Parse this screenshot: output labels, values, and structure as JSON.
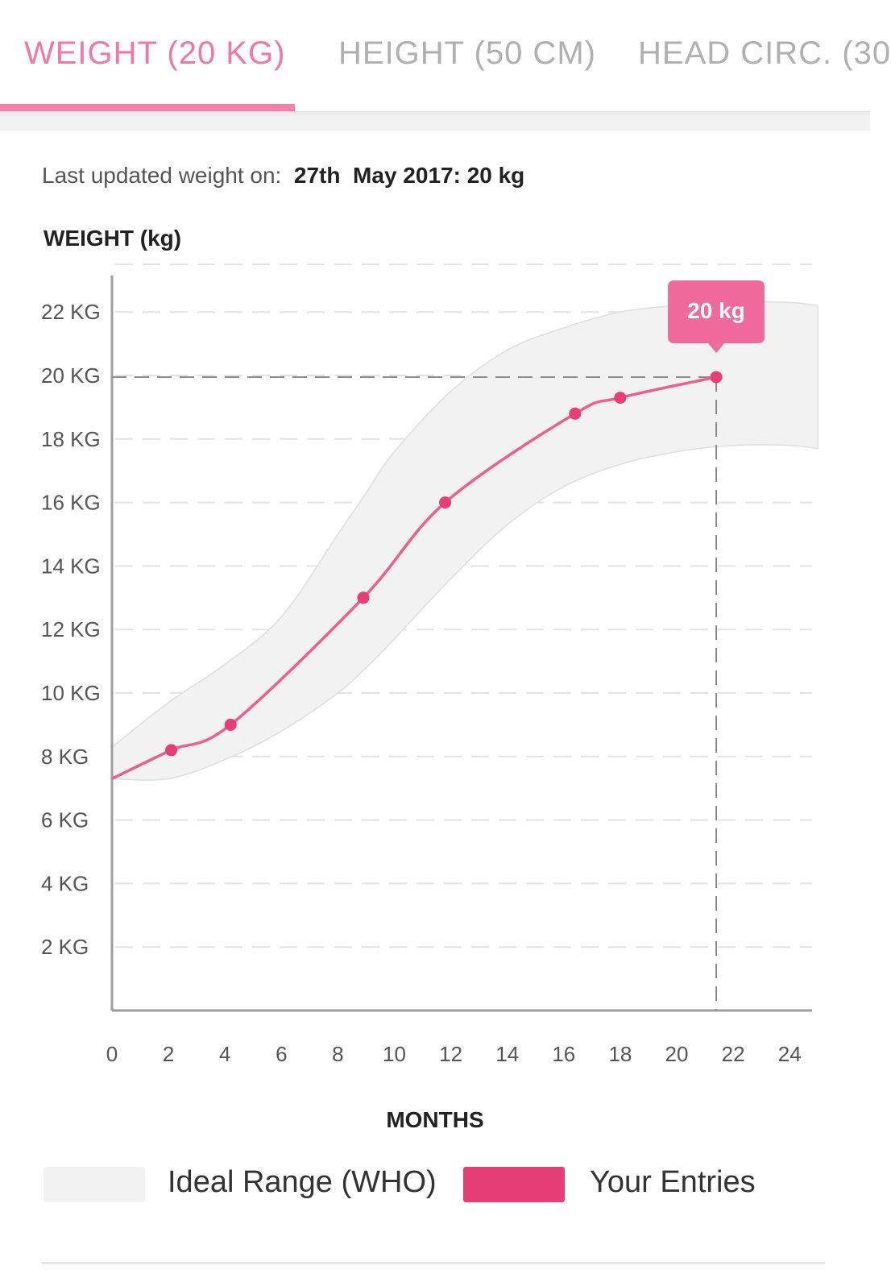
{
  "tabs": [
    {
      "label": "WEIGHT  (20 KG)",
      "active": true
    },
    {
      "label": "HEIGHT (50 CM)",
      "active": false
    },
    {
      "label": "HEAD CIRC. (30",
      "active": false
    }
  ],
  "last_updated": {
    "prefix": "Last updated weight on:",
    "day": "27th",
    "rest": "May 2017: 20 kg"
  },
  "colors": {
    "accent": "#f278a2",
    "entries": "#e83e78",
    "range_fill": "#f2f2f2",
    "tooltip": "#f06b9b"
  },
  "chart_data": {
    "type": "line",
    "ylabel": "WEIGHT (kg)",
    "xlabel": "MONTHS",
    "xlim": [
      0,
      25
    ],
    "ylim": [
      0,
      23.5
    ],
    "x_ticks": [
      "0",
      "2",
      "4",
      "6",
      "8",
      "10",
      "12",
      "14",
      "16",
      "18",
      "20",
      "22",
      "24"
    ],
    "y_ticks": [
      {
        "value": 22,
        "label": "22 KG"
      },
      {
        "value": 20,
        "label": "20 KG"
      },
      {
        "value": 18,
        "label": "18 KG"
      },
      {
        "value": 16,
        "label": "16 KG"
      },
      {
        "value": 14,
        "label": "14 KG"
      },
      {
        "value": 12,
        "label": "12 KG"
      },
      {
        "value": 10,
        "label": "10 KG"
      },
      {
        "value": 8,
        "label": "8 KG"
      },
      {
        "value": 6,
        "label": "6 KG"
      },
      {
        "value": 4,
        "label": "4 KG"
      },
      {
        "value": 2,
        "label": "2 KG"
      }
    ],
    "grid": true,
    "legend": "bottom",
    "series": [
      {
        "name": "Ideal Range (WHO)",
        "type": "band",
        "x": [
          0,
          2,
          4,
          6,
          8,
          9,
          10,
          12,
          14,
          16,
          18,
          20,
          22,
          24,
          25
        ],
        "upper": [
          8.3,
          9.7,
          10.9,
          12.4,
          15.0,
          16.3,
          17.6,
          19.5,
          20.8,
          21.5,
          22.0,
          22.2,
          22.3,
          22.3,
          22.2
        ],
        "lower": [
          7.3,
          7.3,
          7.9,
          8.8,
          10.0,
          10.8,
          11.7,
          13.6,
          15.3,
          16.5,
          17.2,
          17.6,
          17.8,
          17.8,
          17.7
        ]
      },
      {
        "name": "Your Entries",
        "type": "line",
        "x": [
          0,
          2.1,
          4.2,
          8.9,
          11.8,
          16.4,
          18.0,
          21.4
        ],
        "y": [
          7.3,
          8.2,
          9.0,
          13.0,
          16.0,
          18.8,
          19.3,
          19.95
        ]
      }
    ],
    "highlight": {
      "x": 21.4,
      "y": 19.95,
      "label": "20 kg"
    }
  },
  "legend": [
    {
      "label": "Ideal Range (WHO)",
      "color": "#f2f2f2"
    },
    {
      "label": "Your Entries",
      "color": "#e83e78"
    }
  ]
}
